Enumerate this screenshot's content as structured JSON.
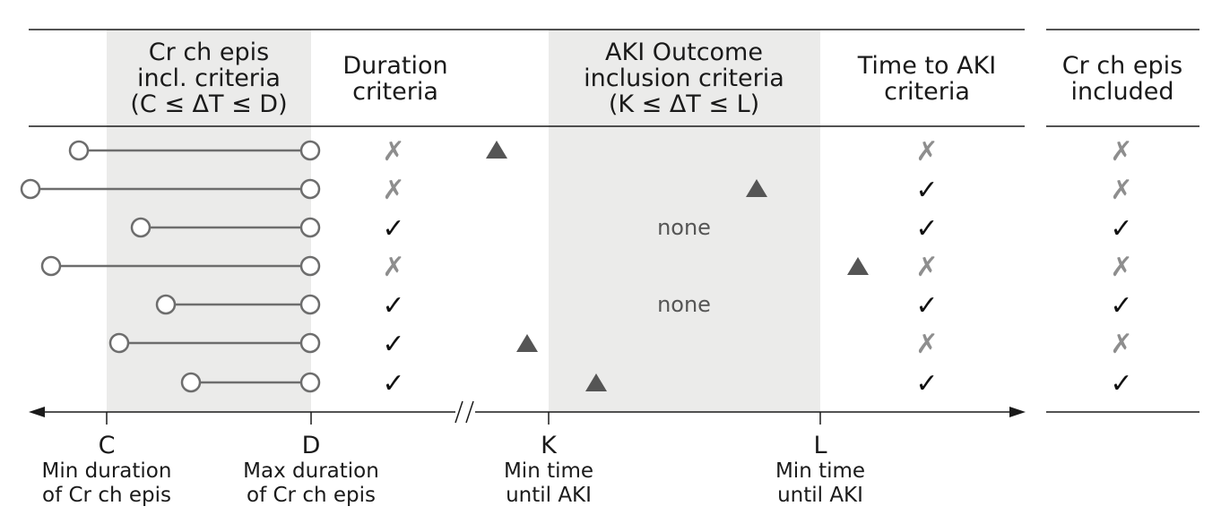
{
  "headers": {
    "cr_ch_epis_incl": [
      "Cr ch epis",
      "incl. criteria",
      "(C ≤ ΔT ≤ D)"
    ],
    "duration": [
      "Duration",
      "criteria"
    ],
    "aki_outcome": [
      "AKI Outcome",
      "inclusion criteria",
      "(K ≤ ΔT ≤ L)"
    ],
    "time_to_aki": [
      "Time to AKI",
      "criteria"
    ],
    "included": [
      "Cr ch epis",
      "included"
    ]
  },
  "axis": {
    "ticks": [
      {
        "label": "C",
        "desc": [
          "Min duration",
          "of Cr ch epis"
        ]
      },
      {
        "label": "D",
        "desc": [
          "Max duration",
          "of Cr ch epis"
        ]
      },
      {
        "label": "K",
        "desc": [
          "Min time",
          "until AKI"
        ]
      },
      {
        "label": "L",
        "desc": [
          "Min time",
          "until AKI"
        ]
      }
    ],
    "break_symbol": "//"
  },
  "rows": [
    {
      "duration": "✗",
      "aki": "triangle",
      "time_to_aki": "✗",
      "included": "✗"
    },
    {
      "duration": "✗",
      "aki": "triangle",
      "time_to_aki": "✓",
      "included": "✗"
    },
    {
      "duration": "✓",
      "aki": "none",
      "none_label": "none",
      "time_to_aki": "✓",
      "included": "✓"
    },
    {
      "duration": "✗",
      "aki": "triangle",
      "time_to_aki": "✗",
      "included": "✗"
    },
    {
      "duration": "✓",
      "aki": "none",
      "none_label": "none",
      "time_to_aki": "✓",
      "included": "✓"
    },
    {
      "duration": "✓",
      "aki": "triangle",
      "time_to_aki": "✗",
      "included": "✗"
    },
    {
      "duration": "✓",
      "aki": "triangle",
      "time_to_aki": "✓",
      "included": "✓"
    }
  ],
  "colors": {
    "shade": "#ebebea",
    "line": "#6d6d6d",
    "triangle": "#555555",
    "check": "#111111",
    "cross": "#8e8e8e",
    "rule": "#1a1a1a"
  }
}
